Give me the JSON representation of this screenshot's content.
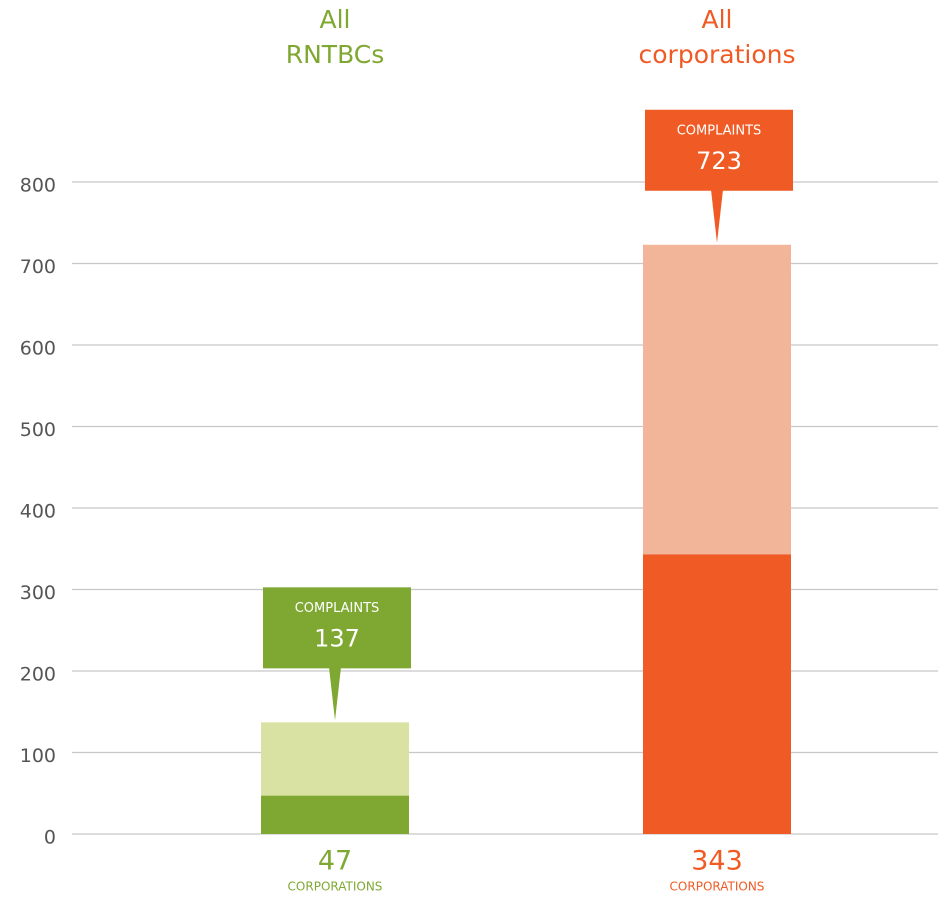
{
  "chart_data": {
    "type": "bar",
    "categories": [
      "All RNTBCs",
      "All corporations"
    ],
    "series": [
      {
        "name": "CORPORATIONS",
        "colors": [
          "#7fa832",
          "#f05a24"
        ],
        "values": [
          47,
          343
        ]
      },
      {
        "name": "COMPLAINTS",
        "colors": [
          "#d9e2a3",
          "#f2b59a"
        ],
        "values": [
          137,
          723
        ]
      }
    ],
    "ylim": [
      0,
      800
    ],
    "yticks": [
      0,
      100,
      200,
      300,
      400,
      500,
      600,
      700,
      800
    ],
    "grid": true
  }
}
